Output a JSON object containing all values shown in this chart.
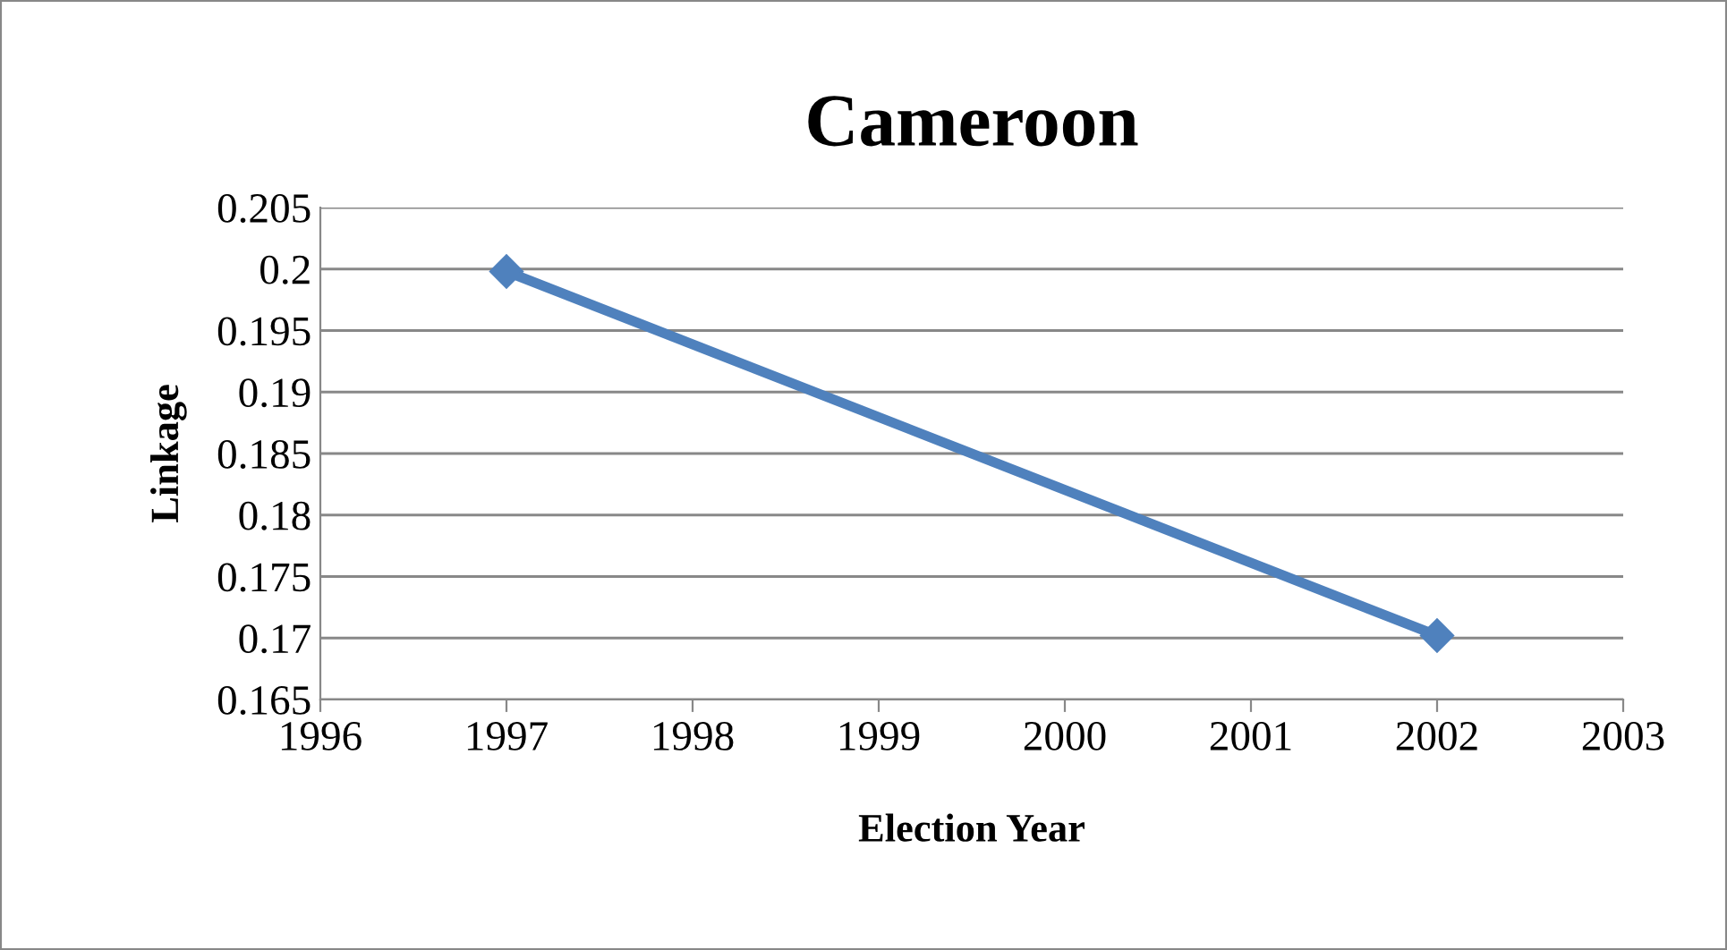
{
  "chart_data": {
    "type": "line",
    "title": "Cameroon",
    "xlabel": "Election Year",
    "ylabel": "Linkage",
    "x": [
      1997,
      2002
    ],
    "series": [
      {
        "color": "#4f81bd",
        "values": [
          0.1998,
          0.1702
        ]
      }
    ],
    "xlim": [
      1996,
      2003
    ],
    "xticks": [
      1996,
      1997,
      1998,
      1999,
      2000,
      2001,
      2002,
      2003
    ],
    "ylim": [
      0.165,
      0.205
    ],
    "yticks": [
      0.165,
      0.17,
      0.175,
      0.18,
      0.185,
      0.19,
      0.195,
      0.2,
      0.205
    ],
    "grid": "y",
    "marker": "diamond",
    "line_style": "solid"
  }
}
